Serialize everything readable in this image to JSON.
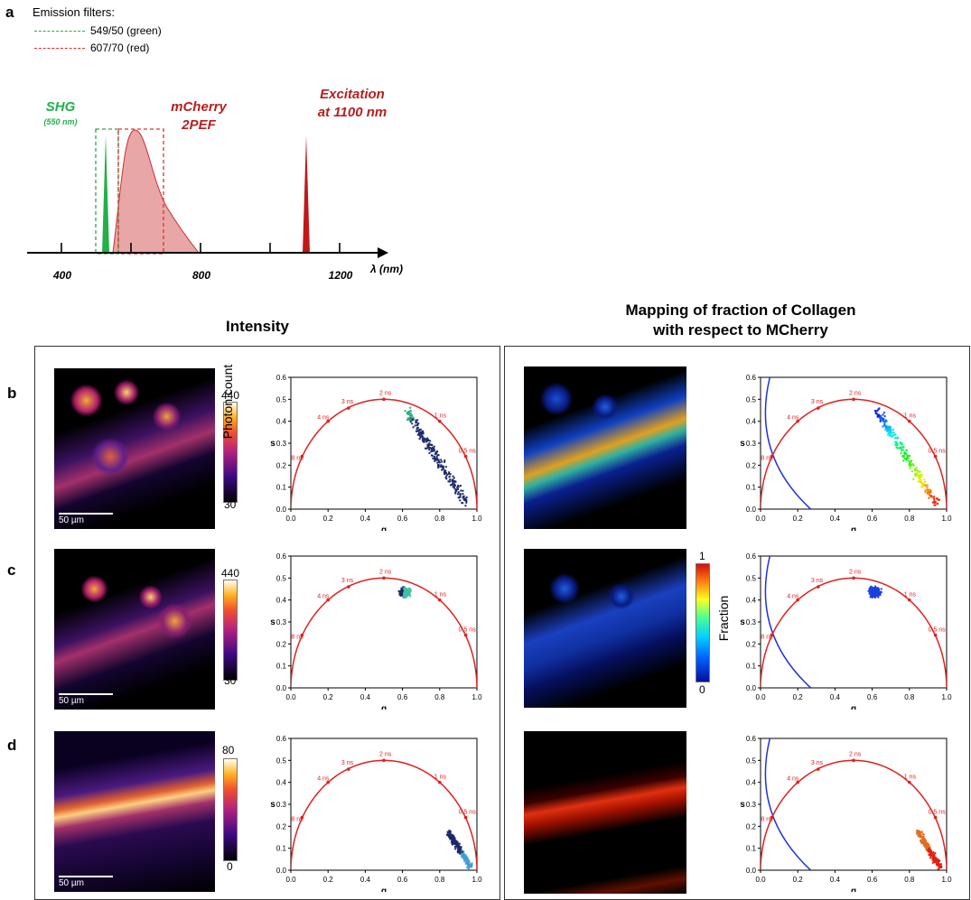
{
  "panel_a": {
    "label": "a",
    "legend_title": "Emission filters:",
    "filters": [
      {
        "label": "549/50 (green)",
        "color": "#2fa84f"
      },
      {
        "label": "607/70 (red)",
        "color": "#e03030"
      }
    ],
    "shg_label": "SHG",
    "shg_sub": "(550 nm)",
    "mcherry_label": "mCherry",
    "mcherry_sub": "2PEF",
    "excitation_label": "Excitation",
    "excitation_sub": "at 1100 nm",
    "xaxis_label": "λ (nm)",
    "xticks": [
      "400",
      "800",
      "1200"
    ]
  },
  "columns": {
    "left_title": "Intensity",
    "right_title_1": "Mapping of fraction of  Collagen",
    "right_title_2": "with respect to MCherry"
  },
  "rows": [
    {
      "label": "b",
      "scale": "50 µm",
      "cb_max": "440",
      "cb_min": "30"
    },
    {
      "label": "c",
      "scale": "50 µm",
      "cb_max": "440",
      "cb_min": "30"
    },
    {
      "label": "d",
      "scale": "50 µm",
      "cb_max": "80",
      "cb_min": "0"
    }
  ],
  "photon_count_label": "Photon count",
  "fraction_label": "Fraction",
  "fraction_max": "1",
  "fraction_min": "0",
  "phasor": {
    "xlabel": "g",
    "ylabel": "s",
    "xticks": [
      "0.0",
      "0.2",
      "0.4",
      "0.6",
      "0.8",
      "1.0"
    ],
    "yticks": [
      "0.0",
      "0.1",
      "0.2",
      "0.3",
      "0.4",
      "0.5",
      "0.6"
    ],
    "lifetimes": [
      "8 ns",
      "4 ns",
      "3 ns",
      "2 ns",
      "1 ns",
      "0.5 ns"
    ],
    "colors": {
      "circle": "#e02020",
      "blue_arc": "#2030e0"
    }
  },
  "chart_data": [
    {
      "type": "scatter",
      "panel": "b-intensity",
      "xlabel": "g",
      "ylabel": "s",
      "xlim": [
        0,
        1
      ],
      "ylim": [
        0,
        0.6
      ],
      "cluster": "elongated from (0.62, 0.45) to (0.95, 0.03)"
    },
    {
      "type": "scatter",
      "panel": "b-fraction",
      "xlabel": "g",
      "ylabel": "s",
      "xlim": [
        0,
        1
      ],
      "ylim": [
        0,
        0.6
      ],
      "cluster": "elongated, coloured by fraction"
    },
    {
      "type": "scatter",
      "panel": "c-intensity",
      "xlabel": "g",
      "ylabel": "s",
      "xlim": [
        0,
        1
      ],
      "ylim": [
        0,
        0.6
      ],
      "cluster": "compact near (0.62, 0.45)"
    },
    {
      "type": "scatter",
      "panel": "c-fraction",
      "xlabel": "g",
      "ylabel": "s",
      "xlim": [
        0,
        1
      ],
      "ylim": [
        0,
        0.6
      ],
      "cluster": "compact near (0.62, 0.45), blue"
    },
    {
      "type": "scatter",
      "panel": "d-intensity",
      "xlabel": "g",
      "ylabel": "s",
      "xlim": [
        0,
        1
      ],
      "ylim": [
        0,
        0.6
      ],
      "cluster": "near (0.93, 0.05)"
    },
    {
      "type": "scatter",
      "panel": "d-fraction",
      "xlabel": "g",
      "ylabel": "s",
      "xlim": [
        0,
        1
      ],
      "ylim": [
        0,
        0.6
      ],
      "cluster": "near (0.93, 0.05), red"
    }
  ]
}
